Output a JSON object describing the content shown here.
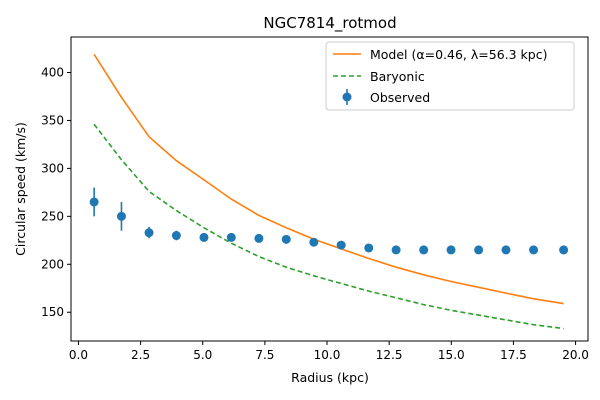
{
  "chart_data": {
    "type": "line",
    "title": "NGC7814_rotmod",
    "xlabel": "Radius (kpc)",
    "ylabel": "Circular speed (km/s)",
    "xlim": [
      -0.3,
      20.5
    ],
    "ylim": [
      120,
      437
    ],
    "x_ticks": [
      0.0,
      2.5,
      5.0,
      7.5,
      10.0,
      12.5,
      15.0,
      17.5,
      20.0
    ],
    "x_tick_labels": [
      "0.0",
      "2.5",
      "5.0",
      "7.5",
      "10.0",
      "12.5",
      "15.0",
      "17.5",
      "20.0"
    ],
    "y_ticks": [
      150,
      200,
      250,
      300,
      350,
      400
    ],
    "y_tick_labels": [
      "150",
      "200",
      "250",
      "300",
      "350",
      "400"
    ],
    "grid": false,
    "legend_position": "top-right",
    "series": [
      {
        "name": "Model (α=0.46, λ=56.3 kpc)",
        "kind": "line",
        "color": "#ff7f0e",
        "style": "solid",
        "x": [
          0.63,
          1.73,
          2.84,
          3.94,
          5.05,
          6.15,
          7.26,
          8.36,
          9.47,
          10.57,
          11.68,
          12.78,
          13.89,
          14.99,
          16.1,
          17.2,
          18.31,
          19.52
        ],
        "y": [
          419,
          374,
          333,
          308,
          288,
          268,
          251,
          238,
          226,
          216,
          206,
          197,
          189,
          182,
          176,
          170,
          164,
          159
        ]
      },
      {
        "name": "Baryonic",
        "kind": "line",
        "color": "#2ca02c",
        "style": "dashed",
        "x": [
          0.63,
          1.73,
          2.84,
          3.94,
          5.05,
          6.15,
          7.26,
          8.36,
          9.47,
          10.57,
          11.68,
          12.78,
          13.89,
          14.99,
          16.1,
          17.2,
          18.31,
          19.52
        ],
        "y": [
          346,
          309,
          276,
          256,
          238,
          222,
          208,
          197,
          188,
          180,
          172,
          165,
          158,
          152,
          147,
          142,
          137,
          133
        ]
      },
      {
        "name": "Observed",
        "kind": "errorbar",
        "color": "#1f77b4",
        "x": [
          0.63,
          1.73,
          2.84,
          3.94,
          5.05,
          6.15,
          7.26,
          8.36,
          9.47,
          10.57,
          11.68,
          12.78,
          13.89,
          14.99,
          16.1,
          17.2,
          18.31,
          19.52
        ],
        "y": [
          265,
          250,
          233,
          230,
          228,
          228,
          227,
          226,
          223,
          220,
          217,
          215,
          215,
          215,
          215,
          215,
          215,
          215
        ],
        "yerr": [
          15,
          15,
          6,
          5,
          3,
          3,
          4,
          2,
          3,
          2,
          2,
          2,
          2,
          2,
          2,
          3,
          2,
          2
        ]
      }
    ]
  }
}
